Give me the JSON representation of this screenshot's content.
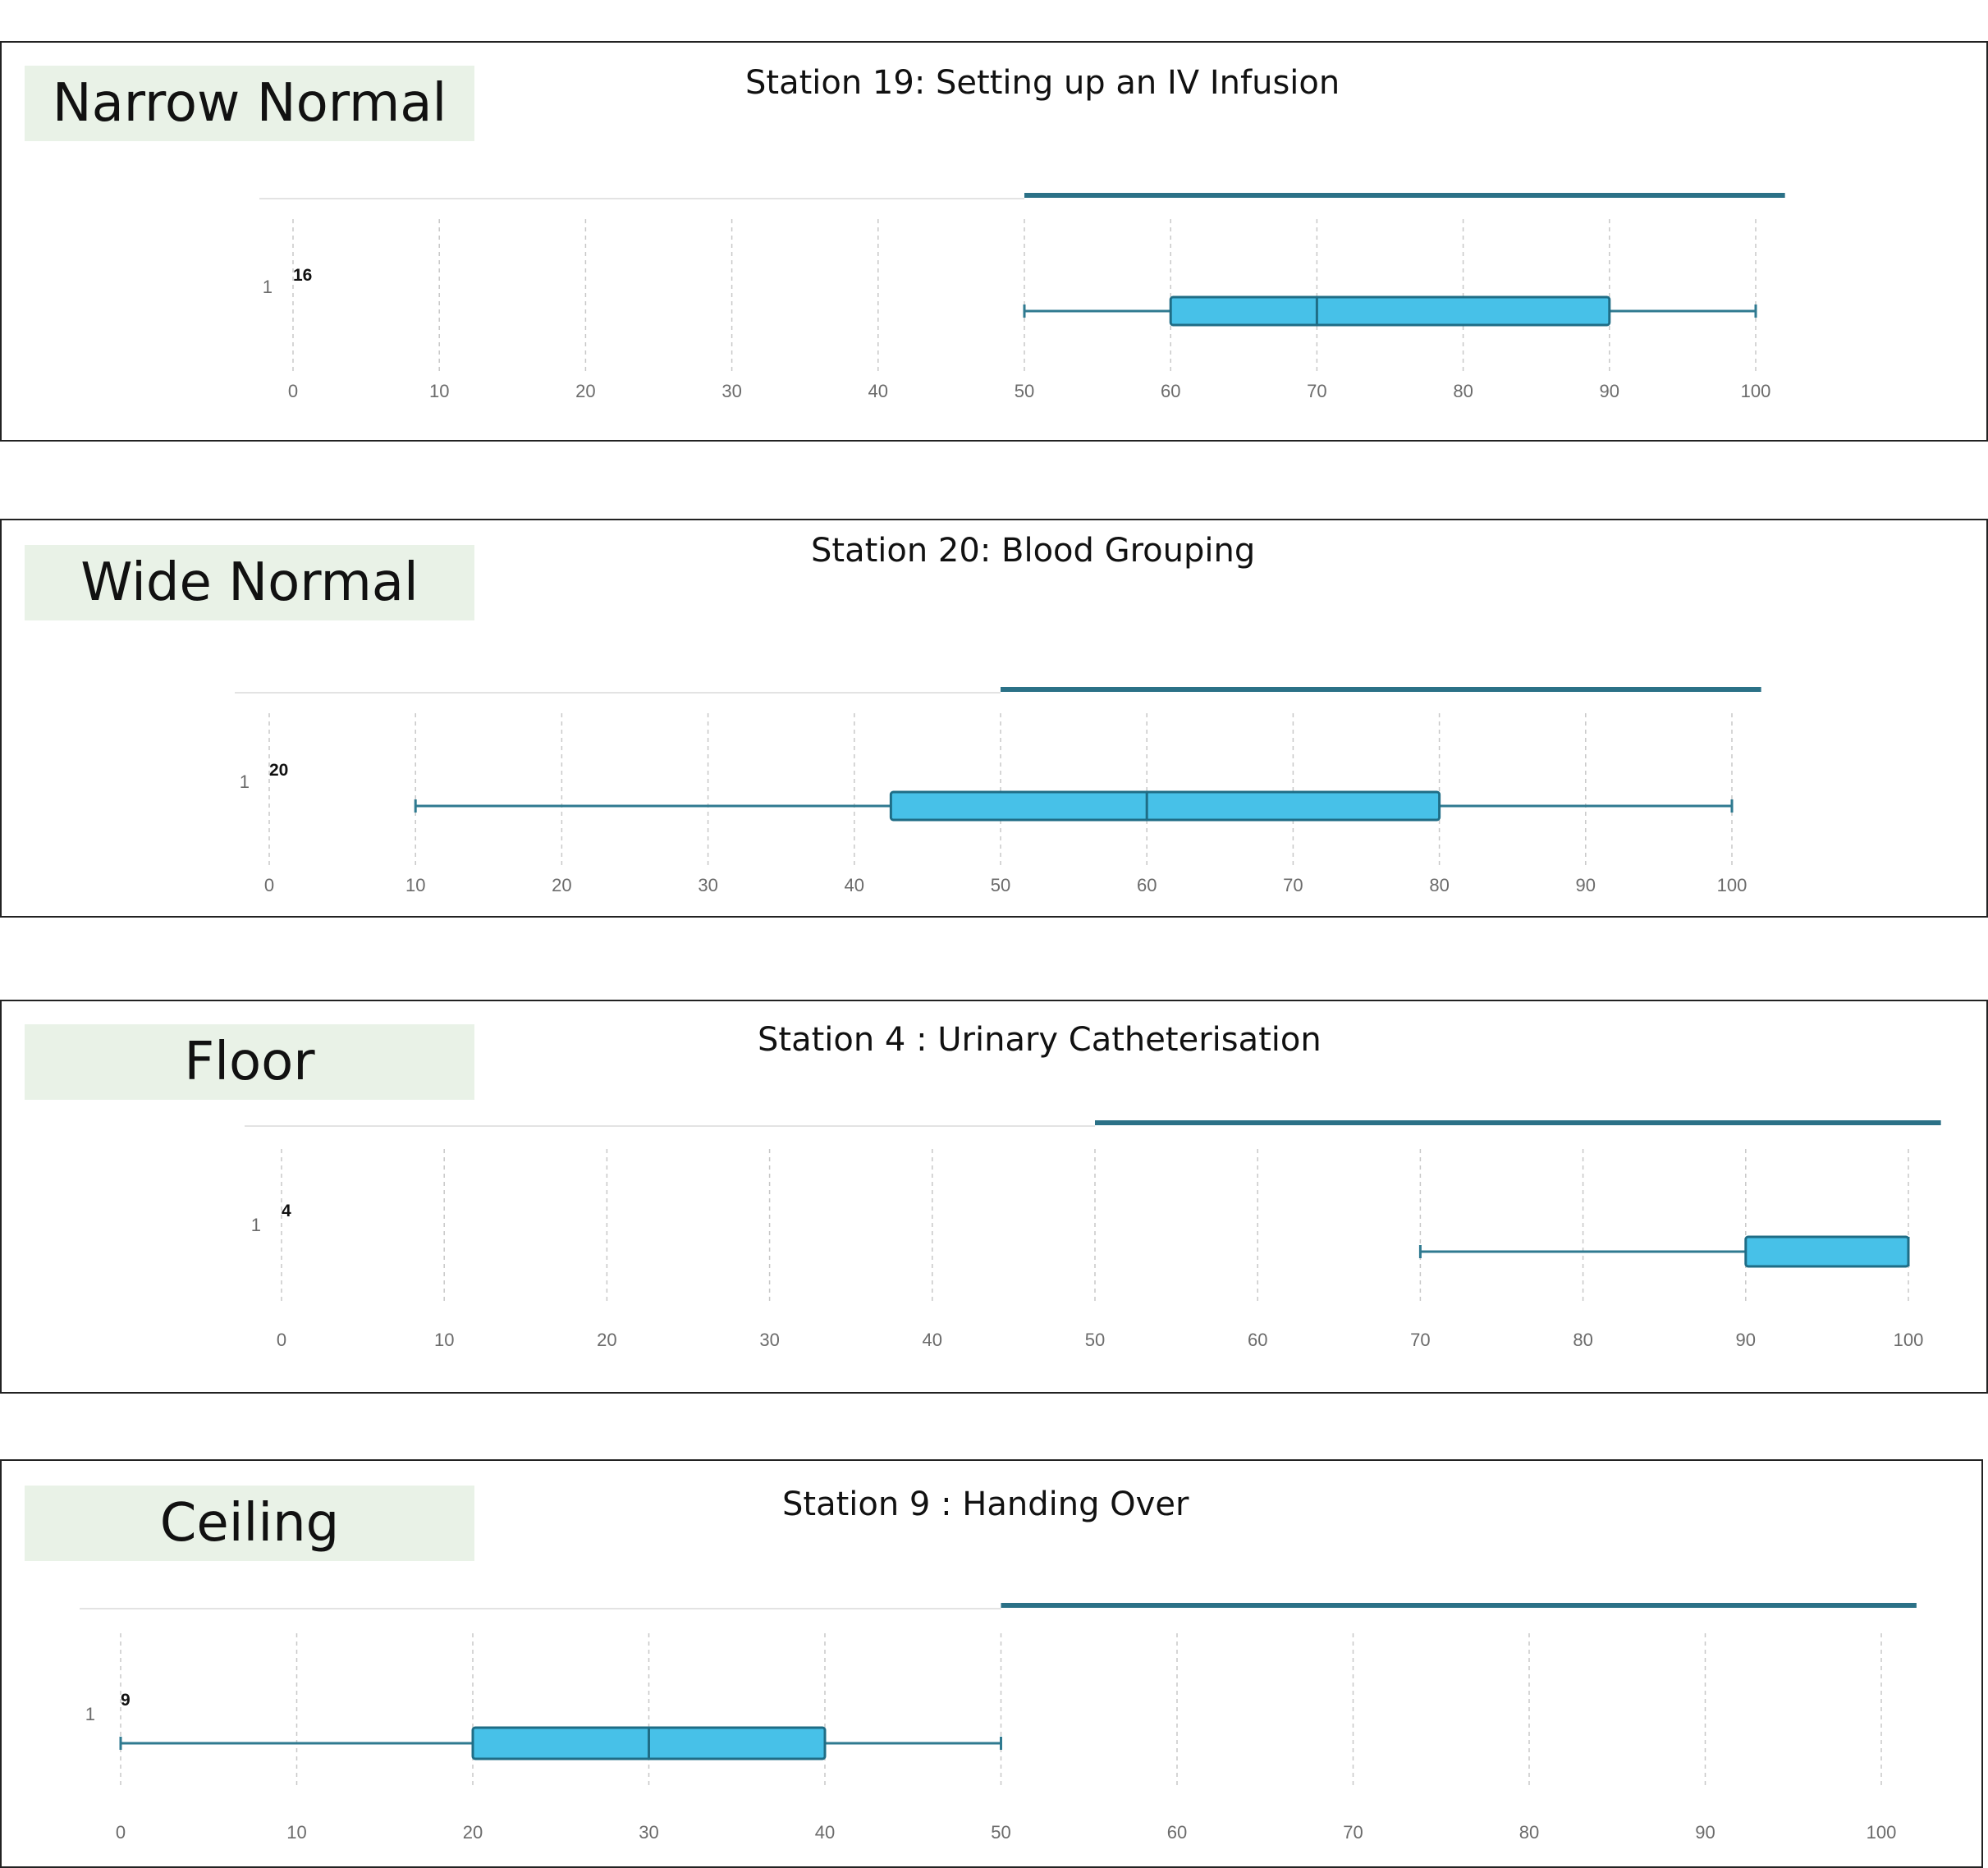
{
  "colors": {
    "box_fill": "#47c1e8",
    "box_stroke": "#1f6d86",
    "whisker": "#2f7a90",
    "pass_line": "#2b7187",
    "grid": "#c8c8c8",
    "label_bg": "#e9f2e7"
  },
  "panels": [
    {
      "label": "Narrow Normal",
      "chart_data": {
        "type": "box",
        "title": "Station 19: Setting up an IV Infusion",
        "category": "1",
        "n": "16",
        "min": 50,
        "q1": 60,
        "median": 70,
        "q3": 90,
        "max": 100,
        "pass_line": [
          50,
          102
        ],
        "xlim": [
          0,
          100
        ],
        "xticks": [
          0,
          10,
          20,
          30,
          40,
          50,
          60,
          70,
          80,
          90,
          100
        ],
        "grid": true
      }
    },
    {
      "label": "Wide Normal",
      "chart_data": {
        "type": "box",
        "title": "Station 20: Blood Grouping",
        "category": "1",
        "n": "20",
        "min": 10,
        "q1": 42.5,
        "median": 60,
        "q3": 80,
        "max": 100,
        "pass_line": [
          50,
          102
        ],
        "xlim": [
          0,
          100
        ],
        "xticks": [
          0,
          10,
          20,
          30,
          40,
          50,
          60,
          70,
          80,
          90,
          100
        ],
        "grid": true
      }
    },
    {
      "label": "Floor",
      "chart_data": {
        "type": "box",
        "title": "Station 4 : Urinary Catheterisation",
        "category": "1",
        "n": "4",
        "min": 70,
        "q1": 90,
        "median": 100,
        "q3": 100,
        "max": 100,
        "pass_line": [
          50,
          102
        ],
        "xlim": [
          0,
          100
        ],
        "xticks": [
          0,
          10,
          20,
          30,
          40,
          50,
          60,
          70,
          80,
          90,
          100
        ],
        "grid": true
      }
    },
    {
      "label": "Ceiling",
      "chart_data": {
        "type": "box",
        "title": "Station 9 : Handing Over",
        "category": "1",
        "n": "9",
        "min": 0,
        "q1": 20,
        "median": 30,
        "q3": 40,
        "max": 50,
        "pass_line": [
          50,
          102
        ],
        "xlim": [
          0,
          100
        ],
        "xticks": [
          0,
          10,
          20,
          30,
          40,
          50,
          60,
          70,
          80,
          90,
          100
        ],
        "grid": true
      }
    }
  ]
}
